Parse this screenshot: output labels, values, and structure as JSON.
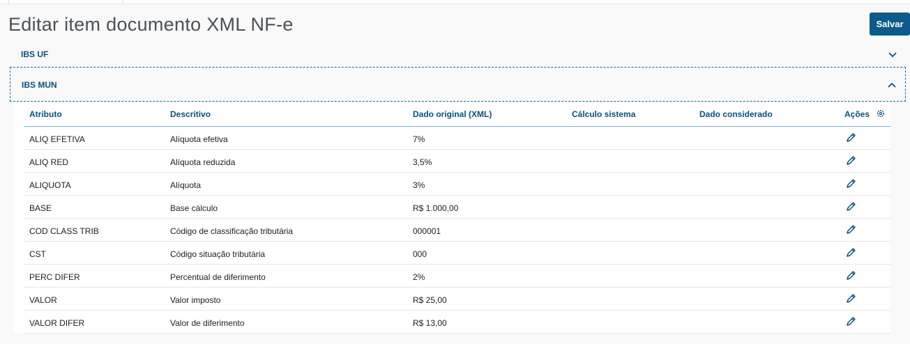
{
  "page": {
    "title": "Editar item documento XML NF-e",
    "save_label": "Salvar"
  },
  "accordions": [
    {
      "label": "IBS UF",
      "expanded": false
    },
    {
      "label": "IBS MUN",
      "expanded": true
    }
  ],
  "table": {
    "columns": [
      "Atributo",
      "Descritivo",
      "Dado original (XML)",
      "Cálculo sistema",
      "Dado considerado",
      "Ações"
    ],
    "rows": [
      [
        "ALIQ EFETIVA",
        "Alíquota efetiva",
        "7%",
        "",
        ""
      ],
      [
        "ALIQ RED",
        "Alíquota reduzida",
        "3,5%",
        "",
        ""
      ],
      [
        "ALIQUOTA",
        "Alíquota",
        "3%",
        "",
        ""
      ],
      [
        "BASE",
        "Base cálculo",
        "R$ 1.000,00",
        "",
        ""
      ],
      [
        "COD CLASS TRIB",
        "Código de classificação tributária",
        "000001",
        "",
        ""
      ],
      [
        "CST",
        "Código situação tributária",
        "000",
        "",
        ""
      ],
      [
        "PERC DIFER",
        "Percentual de diferimento",
        "2%",
        "",
        ""
      ],
      [
        "VALOR",
        "Valor imposto",
        "R$ 25,00",
        "",
        ""
      ],
      [
        "VALOR DIFER",
        "Valor de diferimento",
        "R$ 13,00",
        "",
        ""
      ]
    ]
  },
  "icons": {
    "row_action": "pencil-icon",
    "settings": "gear-icon",
    "collapsed": "chevron-down-icon",
    "expanded": "chevron-up-icon"
  },
  "colors": {
    "primary": "#0c5a8b",
    "heading": "#0c4f78"
  }
}
